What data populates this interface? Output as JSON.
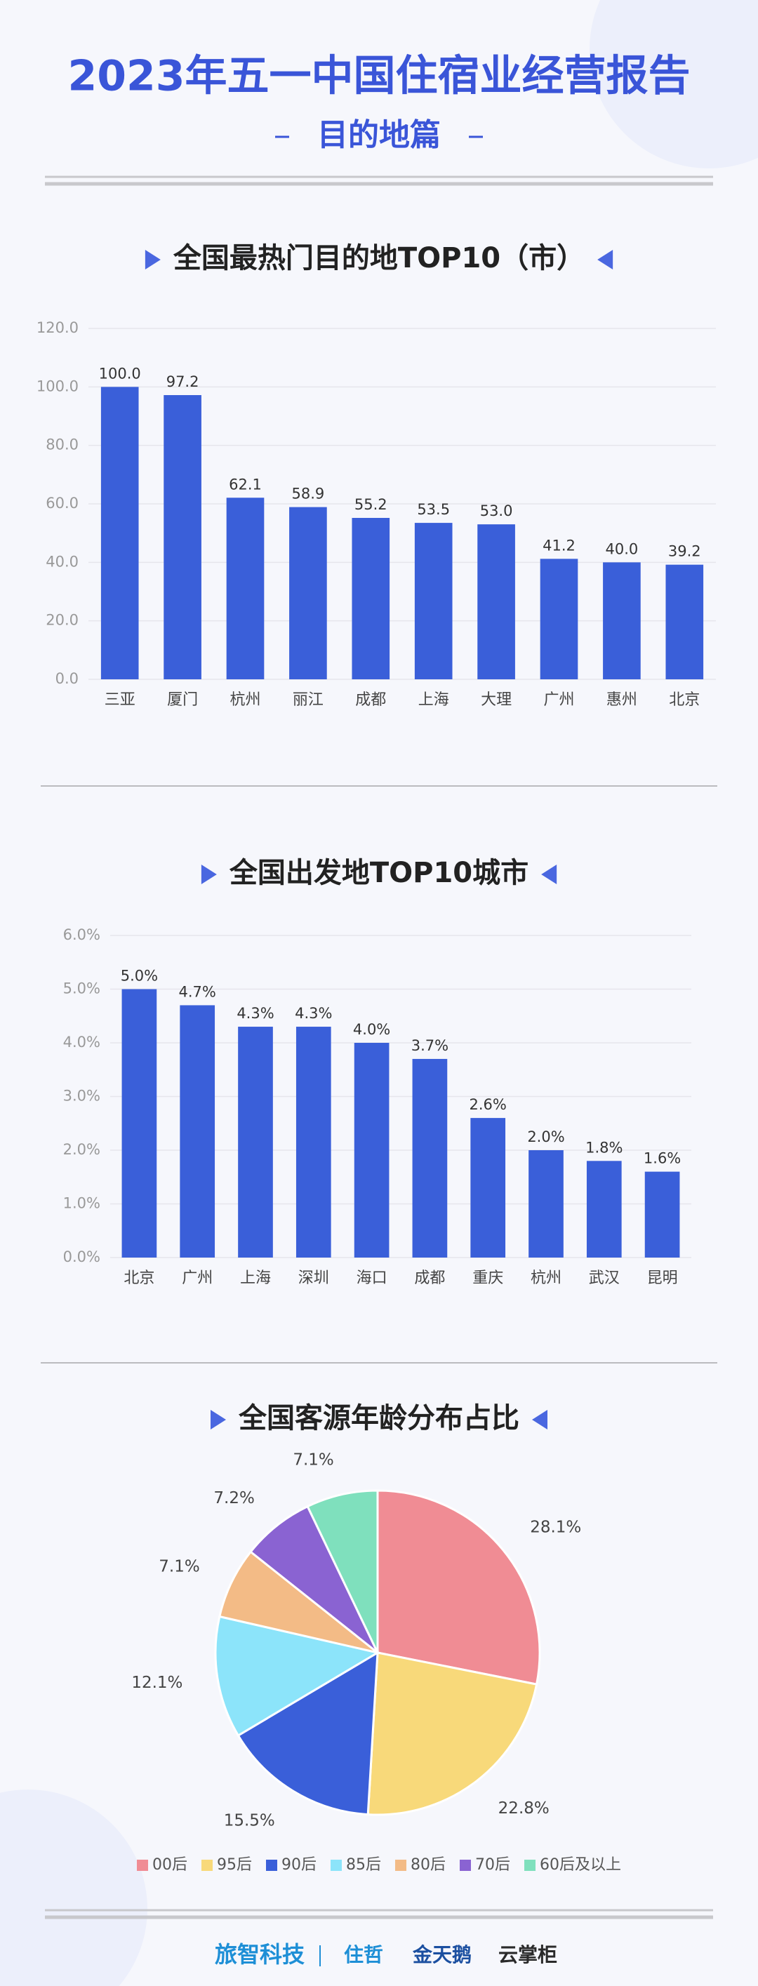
{
  "header": {
    "title": "2023年五一中国住宿业经营报告",
    "subtitle": "目的地篇"
  },
  "chart_data": [
    {
      "type": "bar",
      "title": "全国最热门目的地TOP10（市）",
      "categories": [
        "三亚",
        "厦门",
        "杭州",
        "丽江",
        "成都",
        "上海",
        "大理",
        "广州",
        "惠州",
        "北京"
      ],
      "values": [
        100.0,
        97.2,
        62.1,
        58.9,
        55.2,
        53.5,
        53.0,
        41.2,
        40.0,
        39.2
      ],
      "value_labels": [
        "100.0",
        "97.2",
        "62.1",
        "58.9",
        "55.2",
        "53.5",
        "53.0",
        "41.2",
        "40.0",
        "39.2"
      ],
      "color": "#3a5fd9",
      "ylim": [
        0,
        120
      ],
      "yticks": [
        {
          "value": 0,
          "label": "0.0"
        },
        {
          "value": 20,
          "label": "20.0"
        },
        {
          "value": 40,
          "label": "40.0"
        },
        {
          "value": 60,
          "label": "60.0"
        },
        {
          "value": 80,
          "label": "80.0"
        },
        {
          "value": 100,
          "label": "100.0"
        },
        {
          "value": 120,
          "label": "120.0"
        }
      ],
      "grid": true
    },
    {
      "type": "bar",
      "title": "全国出发地TOP10城市",
      "categories": [
        "北京",
        "广州",
        "上海",
        "深圳",
        "海口",
        "成都",
        "重庆",
        "杭州",
        "武汉",
        "昆明"
      ],
      "values": [
        5.0,
        4.7,
        4.3,
        4.3,
        4.0,
        3.7,
        2.6,
        2.0,
        1.8,
        1.6
      ],
      "value_labels": [
        "5.0%",
        "4.7%",
        "4.3%",
        "4.3%",
        "4.0%",
        "3.7%",
        "2.6%",
        "2.0%",
        "1.8%",
        "1.6%"
      ],
      "color": "#3a5fd9",
      "ylim": [
        0,
        6
      ],
      "yticks": [
        {
          "value": 0,
          "label": "0.0%"
        },
        {
          "value": 1,
          "label": "1.0%"
        },
        {
          "value": 2,
          "label": "2.0%"
        },
        {
          "value": 3,
          "label": "3.0%"
        },
        {
          "value": 4,
          "label": "4.0%"
        },
        {
          "value": 5,
          "label": "5.0%"
        },
        {
          "value": 6,
          "label": "6.0%"
        }
      ],
      "grid": true
    },
    {
      "type": "pie",
      "title": "全国客源年龄分布占比",
      "categories": [
        "00后",
        "95后",
        "90后",
        "85后",
        "80后",
        "70后",
        "60后及以上"
      ],
      "values": [
        28.1,
        22.8,
        15.5,
        12.1,
        7.1,
        7.2,
        7.1
      ],
      "value_labels": [
        "28.1%",
        "22.8%",
        "15.5%",
        "12.1%",
        "7.1%",
        "7.2%",
        "7.1%"
      ],
      "colors": [
        "#f08c94",
        "#f8d97a",
        "#3a5fd9",
        "#8ce4fa",
        "#f3bb86",
        "#8a63d2",
        "#7fe0bd"
      ],
      "legend": "bottom"
    }
  ],
  "footer": {
    "logos": [
      "旅智科技",
      "住哲",
      "金天鹅",
      "云掌柜"
    ]
  }
}
